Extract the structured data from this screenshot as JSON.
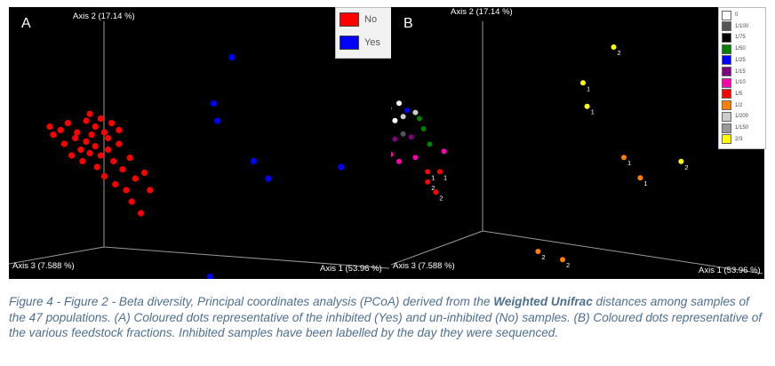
{
  "chart_data": [
    {
      "type": "scatter",
      "panel_letter": "A",
      "axis_labels": {
        "x": "Axis 1 (53.96 %)",
        "y": "Axis 2 (17.14 %)",
        "z": "Axis 3 (7.588 %)"
      },
      "legend": [
        {
          "label": "No",
          "color": "#ff0000"
        },
        {
          "label": "Yes",
          "color": "#0000ff"
        }
      ],
      "series": [
        {
          "name": "No",
          "color": "#ff0000",
          "points": [
            [
              -0.8,
              0.35
            ],
            [
              -0.78,
              0.28
            ],
            [
              -0.74,
              0.32
            ],
            [
              -0.72,
              0.2
            ],
            [
              -0.7,
              0.38
            ],
            [
              -0.68,
              0.1
            ],
            [
              -0.66,
              0.25
            ],
            [
              -0.65,
              0.3
            ],
            [
              -0.63,
              0.15
            ],
            [
              -0.62,
              0.05
            ],
            [
              -0.6,
              0.4
            ],
            [
              -0.6,
              0.22
            ],
            [
              -0.58,
              0.12
            ],
            [
              -0.57,
              0.28
            ],
            [
              -0.55,
              0.35
            ],
            [
              -0.55,
              0.18
            ],
            [
              -0.54,
              0.0
            ],
            [
              -0.52,
              0.42
            ],
            [
              -0.52,
              0.1
            ],
            [
              -0.5,
              0.3
            ],
            [
              -0.5,
              -0.08
            ],
            [
              -0.48,
              0.25
            ],
            [
              -0.48,
              0.15
            ],
            [
              -0.46,
              0.38
            ],
            [
              -0.45,
              0.05
            ],
            [
              -0.44,
              -0.15
            ],
            [
              -0.42,
              0.32
            ],
            [
              -0.42,
              0.2
            ],
            [
              -0.4,
              -0.02
            ],
            [
              -0.38,
              -0.2
            ],
            [
              -0.36,
              0.08
            ],
            [
              -0.35,
              -0.3
            ],
            [
              -0.33,
              -0.1
            ],
            [
              -0.3,
              -0.4
            ],
            [
              -0.28,
              -0.05
            ],
            [
              -0.25,
              -0.2
            ],
            [
              -0.58,
              0.46
            ]
          ]
        },
        {
          "name": "Yes",
          "color": "#0000ff",
          "points": [
            [
              0.2,
              0.95
            ],
            [
              0.1,
              0.55
            ],
            [
              0.12,
              0.4
            ],
            [
              0.32,
              0.05
            ],
            [
              0.4,
              -0.1
            ],
            [
              0.8,
              0.0
            ],
            [
              0.08,
              -0.95
            ],
            [
              0.15,
              -1.0
            ]
          ]
        }
      ]
    },
    {
      "type": "scatter",
      "panel_letter": "B",
      "axis_labels": {
        "x": "Axis 1 (53.96 %)",
        "y": "Axis 2 (17.14 %)",
        "z": "Axis 3 (7.588 %)"
      },
      "legend": [
        {
          "label": "0",
          "color": "#ffffff"
        },
        {
          "label": "1/100",
          "color": "#555555"
        },
        {
          "label": "1/75",
          "color": "#000000"
        },
        {
          "label": "1/50",
          "color": "#008000"
        },
        {
          "label": "1/25",
          "color": "#0000ff"
        },
        {
          "label": "1/15",
          "color": "#800080"
        },
        {
          "label": "1/10",
          "color": "#ff00aa"
        },
        {
          "label": "1/5",
          "color": "#ff0000"
        },
        {
          "label": "1/2",
          "color": "#ff8000"
        },
        {
          "label": "1/200",
          "color": "#cccccc"
        },
        {
          "label": "1/150",
          "color": "#999999"
        },
        {
          "label": "2/3",
          "color": "#ffff00"
        }
      ],
      "series": [
        {
          "name": "0",
          "color": "#ffffff",
          "points": [
            [
              -0.92,
              0.2,
              ""
            ],
            [
              -0.88,
              0.25,
              ""
            ],
            [
              -0.85,
              0.3,
              ""
            ],
            [
              -0.82,
              0.18,
              ""
            ],
            [
              -0.8,
              0.35,
              ""
            ],
            [
              -0.75,
              0.4,
              ""
            ],
            [
              -0.72,
              0.28,
              ""
            ],
            [
              -0.7,
              0.45,
              ""
            ]
          ]
        },
        {
          "name": "1/100",
          "color": "#555555",
          "points": [
            [
              -0.78,
              0.22,
              ""
            ],
            [
              -0.68,
              0.15,
              ""
            ]
          ]
        },
        {
          "name": "1/50",
          "color": "#008000",
          "points": [
            [
              -0.6,
              0.3,
              ""
            ],
            [
              -0.58,
              0.2,
              ""
            ],
            [
              -0.55,
              0.05,
              ""
            ]
          ]
        },
        {
          "name": "1/25",
          "color": "#0000ff",
          "points": [
            [
              -0.76,
              0.3,
              ""
            ],
            [
              -0.66,
              0.38,
              ""
            ]
          ]
        },
        {
          "name": "1/15",
          "color": "#800080",
          "points": [
            [
              -0.72,
              0.1,
              ""
            ],
            [
              -0.64,
              0.12,
              ""
            ]
          ]
        },
        {
          "name": "1/10",
          "color": "#ff00aa",
          "points": [
            [
              -0.74,
              -0.05,
              ""
            ],
            [
              -0.7,
              -0.12,
              ""
            ],
            [
              -0.48,
              -0.02,
              ""
            ],
            [
              -0.62,
              -0.08,
              ""
            ]
          ]
        },
        {
          "name": "1/5",
          "color": "#ff0000",
          "points": [
            [
              -0.56,
              -0.22,
              "1"
            ],
            [
              -0.5,
              -0.22,
              "1"
            ],
            [
              -0.56,
              -0.32,
              "2"
            ],
            [
              -0.52,
              -0.42,
              "2"
            ]
          ]
        },
        {
          "name": "1/2",
          "color": "#ff8000",
          "points": [
            [
              0.4,
              -0.08,
              "1"
            ],
            [
              0.48,
              -0.28,
              "1"
            ],
            [
              -0.02,
              -1.0,
              "2"
            ],
            [
              0.1,
              -1.08,
              "2"
            ]
          ]
        },
        {
          "name": "1/200",
          "color": "#cccccc",
          "points": [
            [
              -0.68,
              0.32,
              ""
            ],
            [
              -0.62,
              0.36,
              ""
            ]
          ]
        },
        {
          "name": "1/150",
          "color": "#999999",
          "points": [
            [
              -0.86,
              0.1,
              ""
            ]
          ]
        },
        {
          "name": "2/3",
          "color": "#ffff00",
          "points": [
            [
              0.35,
              1.0,
              "2"
            ],
            [
              0.2,
              0.65,
              "1"
            ],
            [
              0.22,
              0.42,
              "1"
            ],
            [
              0.68,
              -0.12,
              "2"
            ]
          ]
        }
      ]
    }
  ],
  "caption": {
    "part1": "Figure 4 - Figure 2 - Beta diversity, Principal coordinates analysis (PCoA) derived from the ",
    "bold": "Weighted Unifrac",
    "part2": " distances among samples of the 47 populations. (A) Coloured dots representative of the inhibited (Yes) and un-inhibited (No) samples. (B) Coloured dots representative of the various feedstock fractions. Inhibited samples have been labelled by the day they were sequenced."
  }
}
